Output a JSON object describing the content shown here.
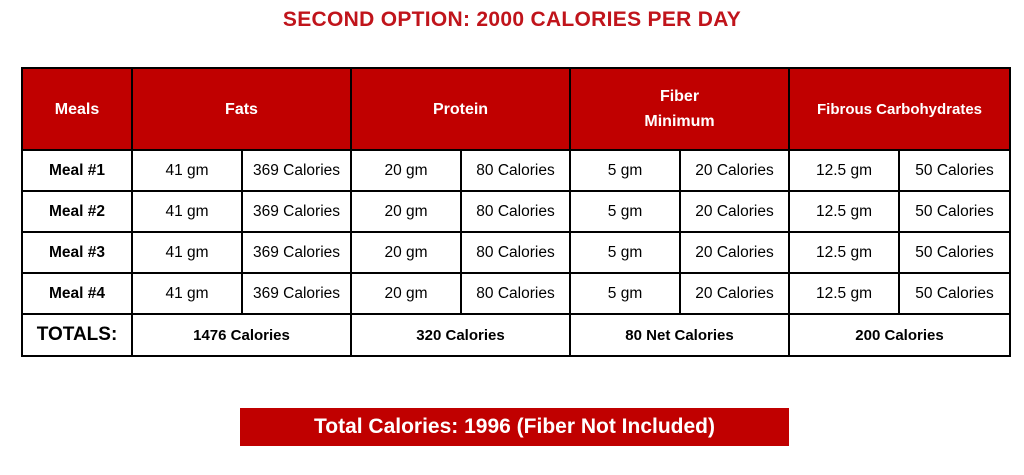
{
  "title": "SECOND OPTION: 2000 CALORIES PER DAY",
  "table": {
    "headers": {
      "meals": "Meals",
      "fats": "Fats",
      "protein": "Protein",
      "fiber_line1": "Fiber",
      "fiber_line2": "Minimum",
      "carbs": "Fibrous Carbohydrates"
    },
    "rows": [
      {
        "meal": "Meal #1",
        "fat_gm": "41 gm",
        "fat_cal": "369 Calories",
        "protein_gm": "20 gm",
        "protein_cal": "80 Calories",
        "fiber_gm": "5 gm",
        "fiber_cal": "20 Calories",
        "carb_gm": "12.5 gm",
        "carb_cal": "50 Calories"
      },
      {
        "meal": "Meal #2",
        "fat_gm": "41 gm",
        "fat_cal": "369 Calories",
        "protein_gm": "20 gm",
        "protein_cal": "80 Calories",
        "fiber_gm": "5 gm",
        "fiber_cal": "20 Calories",
        "carb_gm": "12.5 gm",
        "carb_cal": "50 Calories"
      },
      {
        "meal": "Meal #3",
        "fat_gm": "41 gm",
        "fat_cal": "369 Calories",
        "protein_gm": "20 gm",
        "protein_cal": "80 Calories",
        "fiber_gm": "5 gm",
        "fiber_cal": "20 Calories",
        "carb_gm": "12.5 gm",
        "carb_cal": "50 Calories"
      },
      {
        "meal": "Meal #4",
        "fat_gm": "41 gm",
        "fat_cal": "369 Calories",
        "protein_gm": "20 gm",
        "protein_cal": "80 Calories",
        "fiber_gm": "5 gm",
        "fiber_cal": "20 Calories",
        "carb_gm": "12.5 gm",
        "carb_cal": "50 Calories"
      }
    ],
    "totals": {
      "label": "TOTALS:",
      "fats": "1476 Calories",
      "protein": "320 Calories",
      "fiber": "80 Net Calories",
      "carbs": "200 Calories"
    }
  },
  "banner": "Total Calories: 1996 (Fiber Not Included)",
  "colors": {
    "accent": "#c00000",
    "title": "#c0141b"
  }
}
